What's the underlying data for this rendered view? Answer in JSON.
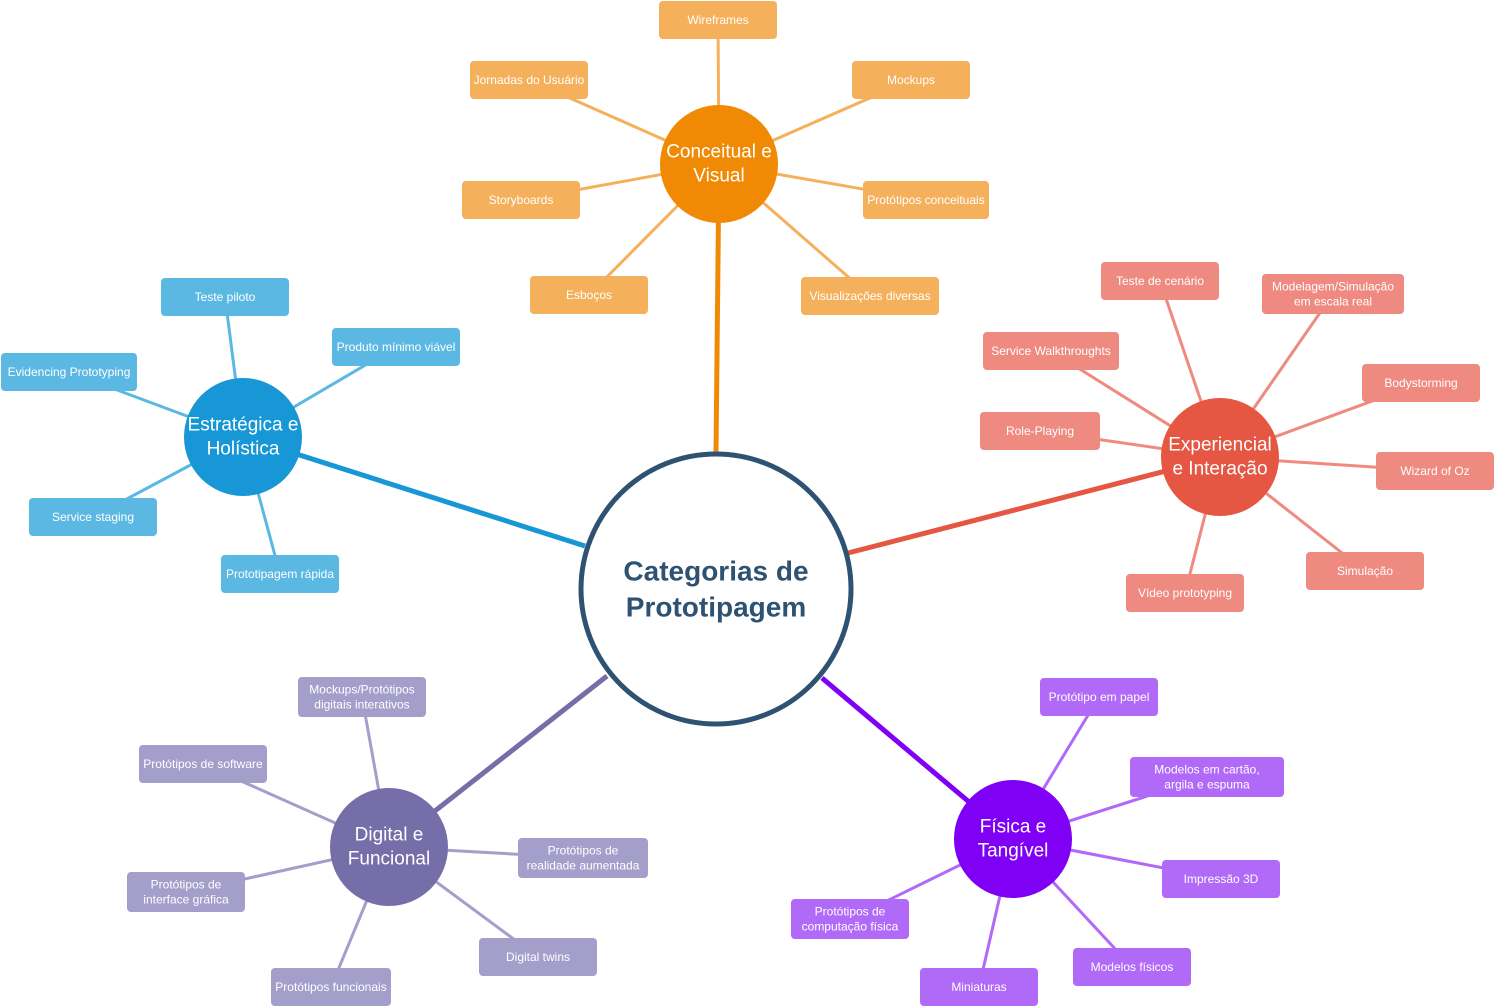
{
  "center": {
    "lines": [
      "Categorias de",
      "Prototipagem"
    ],
    "stroke_color": "#2e5272",
    "text_color": "#2e5272"
  },
  "branches": [
    {
      "id": "conceitual",
      "lines": [
        "Conceitual e",
        "Visual"
      ],
      "color": "#f08a05",
      "leaf_color": "#f5b05b",
      "leaves": [
        {
          "lines": [
            "Wireframes"
          ]
        },
        {
          "lines": [
            "Mockups"
          ]
        },
        {
          "lines": [
            "Protótipos conceituais"
          ]
        },
        {
          "lines": [
            "Visualizações diversas"
          ]
        },
        {
          "lines": [
            "Esboços"
          ]
        },
        {
          "lines": [
            "Storyboards"
          ]
        },
        {
          "lines": [
            "Jornadas do Usuário"
          ]
        }
      ]
    },
    {
      "id": "experiencial",
      "lines": [
        "Experiencial",
        "e Interação"
      ],
      "color": "#e55643",
      "leaf_color": "#ee8a80",
      "leaves": [
        {
          "lines": [
            "Teste de cenário"
          ]
        },
        {
          "lines": [
            "Modelagem/Simulação",
            "em escala real"
          ]
        },
        {
          "lines": [
            "Bodystorming"
          ]
        },
        {
          "lines": [
            "Wizard of Oz"
          ]
        },
        {
          "lines": [
            "Simulação"
          ]
        },
        {
          "lines": [
            "Vídeo prototyping"
          ]
        },
        {
          "lines": [
            "Role-Playing"
          ]
        },
        {
          "lines": [
            "Service Walkthroughts"
          ]
        }
      ]
    },
    {
      "id": "fisica",
      "lines": [
        "Física e",
        "Tangível"
      ],
      "color": "#7f00f5",
      "leaf_color": "#b06af7",
      "leaves": [
        {
          "lines": [
            "Protótipo em papel"
          ]
        },
        {
          "lines": [
            "Modelos em cartão,",
            "argila e espuma"
          ]
        },
        {
          "lines": [
            "Impressão 3D"
          ]
        },
        {
          "lines": [
            "Modelos físicos"
          ]
        },
        {
          "lines": [
            "Miniaturas"
          ]
        },
        {
          "lines": [
            "Protótipos de",
            "computação física"
          ]
        }
      ]
    },
    {
      "id": "digital",
      "lines": [
        "Digital e",
        "Funcional"
      ],
      "color": "#766ea8",
      "leaf_color": "#a49ecb",
      "leaves": [
        {
          "lines": [
            "Mockups/Protótipos",
            "digitais interativos"
          ]
        },
        {
          "lines": [
            "Protótipos de",
            "realidade aumentada"
          ]
        },
        {
          "lines": [
            "Digital twins"
          ]
        },
        {
          "lines": [
            "Protótipos funcionais"
          ]
        },
        {
          "lines": [
            "Protótipos de",
            "interface gráfica"
          ]
        },
        {
          "lines": [
            "Protótipos de software"
          ]
        }
      ]
    },
    {
      "id": "estrategica",
      "lines": [
        "Estratégica e",
        "Holística"
      ],
      "color": "#1797d5",
      "leaf_color": "#5bb8e3",
      "leaves": [
        {
          "lines": [
            "Teste piloto"
          ]
        },
        {
          "lines": [
            "Produto mínimo viável"
          ]
        },
        {
          "lines": [
            "Prototipagem rápida"
          ]
        },
        {
          "lines": [
            "Service staging"
          ]
        },
        {
          "lines": [
            "Evidencing Prototyping"
          ]
        }
      ]
    }
  ]
}
